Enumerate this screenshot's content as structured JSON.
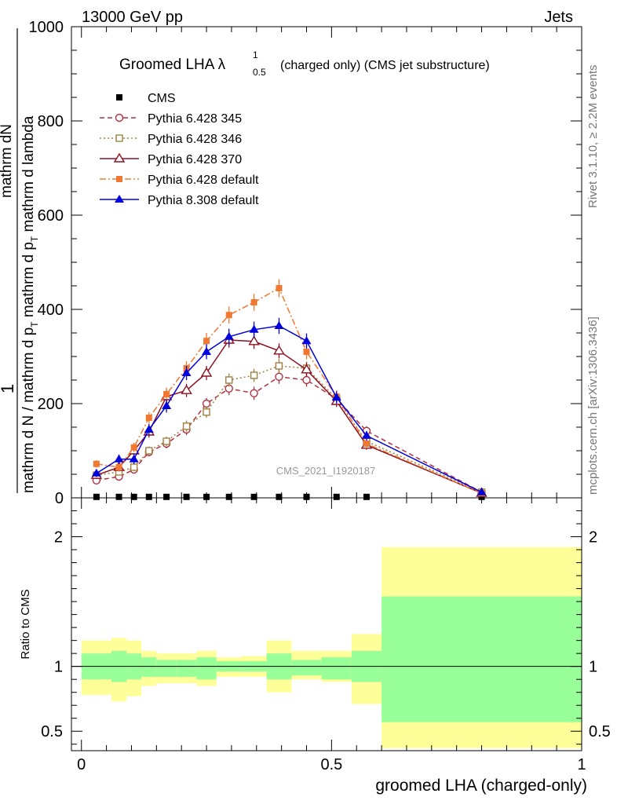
{
  "header": {
    "left": "13000 GeV pp",
    "right": "Jets"
  },
  "side_labels": {
    "rivet": "Rivet 3.1.10, ≥ 2.2M events",
    "mcplots": "mcplots.cern.ch [arXiv:1306.3436]"
  },
  "chart_data": [
    {
      "type": "line",
      "title": "Groomed LHA λ",
      "title_sup": "1",
      "title_sub": "0.5",
      "title_suffix": "(charged only) (CMS jet substructure)",
      "watermark": "CMS_2021_I1920187",
      "ylabel": {
        "numerator": "mathrm dN",
        "den_part1": "mathrm d p",
        "den_sub1": "T",
        "den_part2": " mathrm d lambda",
        "prefactor": "1",
        "pre_den_part1": "mathrm d N / mathrm d p",
        "pre_den_sub": "T",
        "pre_den_part2": " mathrm d p",
        "pre_den_sub2": "T",
        "pre_den_part3": " mathrm d lambda"
      },
      "xlabel": "groomed LHA (charged-only)",
      "xlim": [
        -0.02,
        1.0
      ],
      "ylim": [
        0,
        1000
      ],
      "yticks": [
        0,
        200,
        400,
        600,
        800,
        1000
      ],
      "ytick_labels": [
        "0",
        "200",
        "400",
        "600",
        "800",
        "1000"
      ],
      "legend_position": "top-left",
      "series": [
        {
          "name": "CMS",
          "color": "#000000",
          "marker": "square-filled",
          "line": "none",
          "x": [
            0.03,
            0.075,
            0.105,
            0.135,
            0.17,
            0.21,
            0.25,
            0.295,
            0.345,
            0.395,
            0.45,
            0.51,
            0.57,
            0.8
          ],
          "y": [
            2,
            2,
            2,
            2,
            2,
            2,
            2,
            2,
            2,
            2,
            2,
            2,
            2,
            2
          ]
        },
        {
          "name": "Pythia 6.428 345",
          "color": "#b03040",
          "marker": "circle-open",
          "line": "dashed",
          "x": [
            0.03,
            0.075,
            0.105,
            0.135,
            0.17,
            0.21,
            0.25,
            0.295,
            0.345,
            0.395,
            0.45,
            0.51,
            0.57,
            0.8
          ],
          "y": [
            37,
            45,
            60,
            97,
            115,
            145,
            200,
            232,
            222,
            257,
            250,
            210,
            142,
            12
          ],
          "err": [
            6,
            7,
            8,
            9,
            10,
            12,
            12,
            14,
            14,
            15,
            14,
            12,
            10,
            4
          ]
        },
        {
          "name": "Pythia 6.428 346",
          "color": "#a08040",
          "marker": "square-open",
          "line": "dotted",
          "x": [
            0.03,
            0.075,
            0.105,
            0.135,
            0.17,
            0.21,
            0.25,
            0.295,
            0.345,
            0.395,
            0.45,
            0.51,
            0.57,
            0.8
          ],
          "y": [
            48,
            55,
            65,
            100,
            120,
            152,
            182,
            250,
            260,
            280,
            275,
            210,
            120,
            12
          ],
          "err": [
            6,
            7,
            8,
            9,
            10,
            12,
            12,
            14,
            14,
            15,
            14,
            12,
            10,
            4
          ]
        },
        {
          "name": "Pythia 6.428 370",
          "color": "#8b1020",
          "marker": "triangle-open",
          "line": "solid",
          "x": [
            0.03,
            0.075,
            0.105,
            0.135,
            0.17,
            0.21,
            0.25,
            0.295,
            0.345,
            0.395,
            0.45,
            0.51,
            0.57,
            0.8
          ],
          "y": [
            48,
            65,
            100,
            140,
            215,
            228,
            265,
            335,
            332,
            312,
            272,
            205,
            112,
            10
          ],
          "err": [
            8,
            9,
            10,
            12,
            14,
            14,
            15,
            16,
            16,
            16,
            15,
            12,
            10,
            4
          ]
        },
        {
          "name": "Pythia 6.428 default",
          "color": "#f07830",
          "marker": "square-filled",
          "line": "dashdot",
          "x": [
            0.03,
            0.075,
            0.105,
            0.135,
            0.17,
            0.21,
            0.25,
            0.295,
            0.345,
            0.395,
            0.45,
            0.51,
            0.57,
            0.8
          ],
          "y": [
            72,
            65,
            107,
            170,
            220,
            275,
            333,
            388,
            415,
            445,
            310,
            215,
            115,
            10
          ],
          "err": [
            8,
            9,
            10,
            12,
            14,
            15,
            17,
            18,
            18,
            19,
            16,
            13,
            10,
            4
          ]
        },
        {
          "name": "Pythia 8.308 default",
          "color": "#0000dd",
          "marker": "triangle-filled",
          "line": "solid",
          "x": [
            0.03,
            0.075,
            0.105,
            0.135,
            0.17,
            0.21,
            0.25,
            0.295,
            0.345,
            0.395,
            0.45,
            0.51,
            0.57,
            0.8
          ],
          "y": [
            52,
            82,
            82,
            145,
            195,
            265,
            310,
            342,
            357,
            365,
            333,
            213,
            132,
            12
          ],
          "err": [
            8,
            10,
            10,
            12,
            14,
            15,
            16,
            17,
            17,
            17,
            16,
            13,
            10,
            4
          ]
        }
      ]
    },
    {
      "type": "area",
      "ylabel": "Ratio to CMS",
      "xlabel": "groomed LHA (charged-only)",
      "xlim": [
        -0.02,
        1.0
      ],
      "ylim": [
        0.35,
        2.3
      ],
      "yticks": [
        0.5,
        1,
        2
      ],
      "ytick_labels": [
        "0.5",
        "1",
        "2"
      ],
      "xticks": [
        0,
        0.5,
        1
      ],
      "xtick_labels": [
        "0",
        "0.5",
        "1"
      ],
      "bin_edges": [
        0.0,
        0.06,
        0.09,
        0.12,
        0.15,
        0.19,
        0.23,
        0.27,
        0.32,
        0.37,
        0.42,
        0.48,
        0.54,
        0.6,
        1.0
      ],
      "band_inner": {
        "color": "#99ff99",
        "low": [
          0.9,
          0.88,
          0.9,
          0.92,
          0.92,
          0.92,
          0.9,
          0.96,
          0.96,
          0.9,
          0.93,
          0.9,
          0.88,
          0.57
        ],
        "high": [
          1.1,
          1.12,
          1.1,
          1.07,
          1.05,
          1.05,
          1.07,
          1.04,
          1.04,
          1.1,
          1.05,
          1.07,
          1.12,
          1.54
        ]
      },
      "band_outer": {
        "color": "#ffff99",
        "low": [
          0.78,
          0.73,
          0.77,
          0.85,
          0.87,
          0.87,
          0.85,
          0.92,
          0.92,
          0.8,
          0.9,
          0.88,
          0.71,
          0.37
        ],
        "high": [
          1.2,
          1.22,
          1.2,
          1.12,
          1.1,
          1.1,
          1.12,
          1.07,
          1.08,
          1.2,
          1.12,
          1.12,
          1.25,
          1.92
        ]
      },
      "reference_line": 1.0
    }
  ]
}
